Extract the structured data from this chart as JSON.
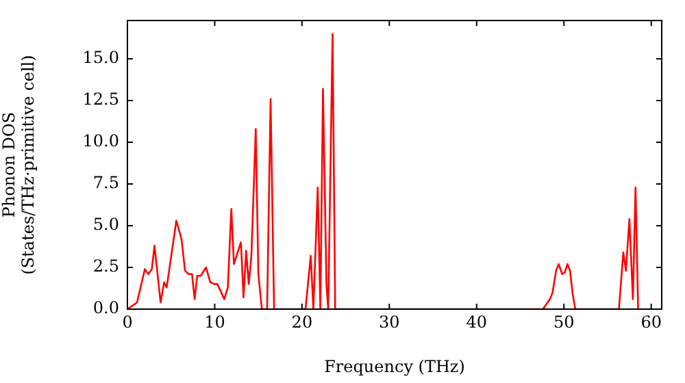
{
  "chart_data": {
    "type": "line",
    "xlabel": "Frequency (THz)",
    "ylabel": "Phonon DOS\n(States/THz·primitive cell)",
    "xlim": [
      0,
      61.2
    ],
    "xticks": [
      0,
      10,
      20,
      30,
      40,
      50,
      60
    ],
    "ylim": [
      0,
      17.3
    ],
    "yticks": [
      {
        "value": 0,
        "label": "0.0"
      },
      {
        "value": 2.5,
        "label": "2.5"
      },
      {
        "value": 5,
        "label": "5.0"
      },
      {
        "value": 7.5,
        "label": "7.5"
      },
      {
        "value": 10,
        "label": "10.0"
      },
      {
        "value": 12.5,
        "label": "12.5"
      },
      {
        "value": 15,
        "label": "15.0"
      }
    ],
    "grid": false,
    "legend": false,
    "marker": "none",
    "line_style": "solid",
    "series": [
      {
        "color": "#ff0000",
        "x": [
          0,
          1.1,
          2.0,
          2.4,
          2.8,
          3.1,
          3.8,
          4.2,
          4.5,
          5.6,
          6.2,
          6.6,
          7.0,
          7.4,
          7.7,
          8.0,
          8.4,
          9.0,
          9.5,
          10.0,
          10.3,
          11.1,
          11.5,
          11.9,
          12.2,
          13.0,
          13.3,
          13.6,
          13.9,
          14.2,
          14.7,
          15.0,
          15.4,
          16.0,
          16.4,
          16.8,
          20.4,
          21.0,
          21.3,
          21.8,
          22.1,
          22.4,
          22.8,
          23.0,
          23.5,
          23.8,
          47.6,
          48.4,
          48.7,
          49.1,
          49.4,
          49.8,
          50.1,
          50.4,
          50.7,
          51.0,
          51.3,
          56.3,
          56.8,
          57.1,
          57.5,
          57.9,
          58.2,
          58.5
        ],
        "values": [
          0,
          0.4,
          2.4,
          2.1,
          2.4,
          3.8,
          0.4,
          1.6,
          1.3,
          5.3,
          4.2,
          2.3,
          2.1,
          2.1,
          0.6,
          2.0,
          2.0,
          2.5,
          1.6,
          1.5,
          1.5,
          0.6,
          1.3,
          6.0,
          2.7,
          4.0,
          0.7,
          3.5,
          1.5,
          3.2,
          10.8,
          2.1,
          0,
          0,
          12.6,
          0,
          0,
          3.2,
          0,
          7.3,
          0,
          13.2,
          1.5,
          0,
          16.5,
          0,
          0,
          0.6,
          1.0,
          2.3,
          2.7,
          2.1,
          2.2,
          2.7,
          2.3,
          0.9,
          0,
          0,
          3.4,
          2.3,
          5.4,
          0.6,
          7.3,
          0
        ]
      }
    ]
  }
}
